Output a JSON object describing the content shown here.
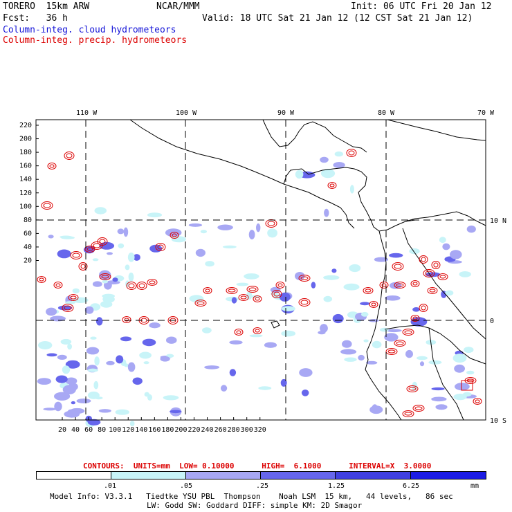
{
  "header": {
    "model": "TORERO  15km ARW",
    "center": "NCAR/MMM",
    "init": "Init: 06 UTC Fri 20 Jan 12",
    "fcst": "Fcst:   36 h",
    "valid": "Valid: 18 UTC Sat 21 Jan 12 (12 CST Sat 21 Jan 12)",
    "field1": "Column-integ. cloud hydrometeors",
    "field2": "Column-integ. precip. hydrometeors"
  },
  "colors": {
    "field1_text": "#1414d8",
    "field2_text": "#dc0000",
    "bin1": "#ffffff",
    "bin2": "#c8f4f8",
    "bin3": "#a8a8f4",
    "bin4": "#6666ec",
    "bin5": "#4040e0",
    "bin6": "#1c1ce4",
    "coast": "#000000",
    "contour": "#dc0000"
  },
  "map": {
    "top_lon_labels": [
      "110 W",
      "100 W",
      "90 W",
      "80 W",
      "70 W"
    ],
    "right_lat_labels": [
      "10 N",
      "0",
      "10 S"
    ],
    "left_grid_labels": [
      "220",
      "200",
      "180",
      "160",
      "140",
      "120",
      "100",
      "80",
      "60",
      "40",
      "20"
    ],
    "bottom_grid_labels": [
      "20",
      "40",
      "60",
      "80",
      "100",
      "120",
      "140",
      "160",
      "180",
      "200",
      "220",
      "240",
      "260",
      "280",
      "300",
      "320"
    ]
  },
  "legend": {
    "contours_line": "CONTOURS:  UNITS=mm  LOW= 0.10000      HIGH=  6.1000      INTERVAL=X  3.0000",
    "ticks": [
      ".01",
      ".05",
      ".25",
      "1.25",
      "6.25"
    ],
    "unit": "mm",
    "bins": 6
  },
  "footer": {
    "line1": "Model Info: V3.3.1   Tiedtke YSU PBL  Thompson    Noah LSM  15 km,   44 levels,   86 sec",
    "line2": "LW: Godd SW: Goddard DIFF: simple KM: 2D Smagor"
  }
}
